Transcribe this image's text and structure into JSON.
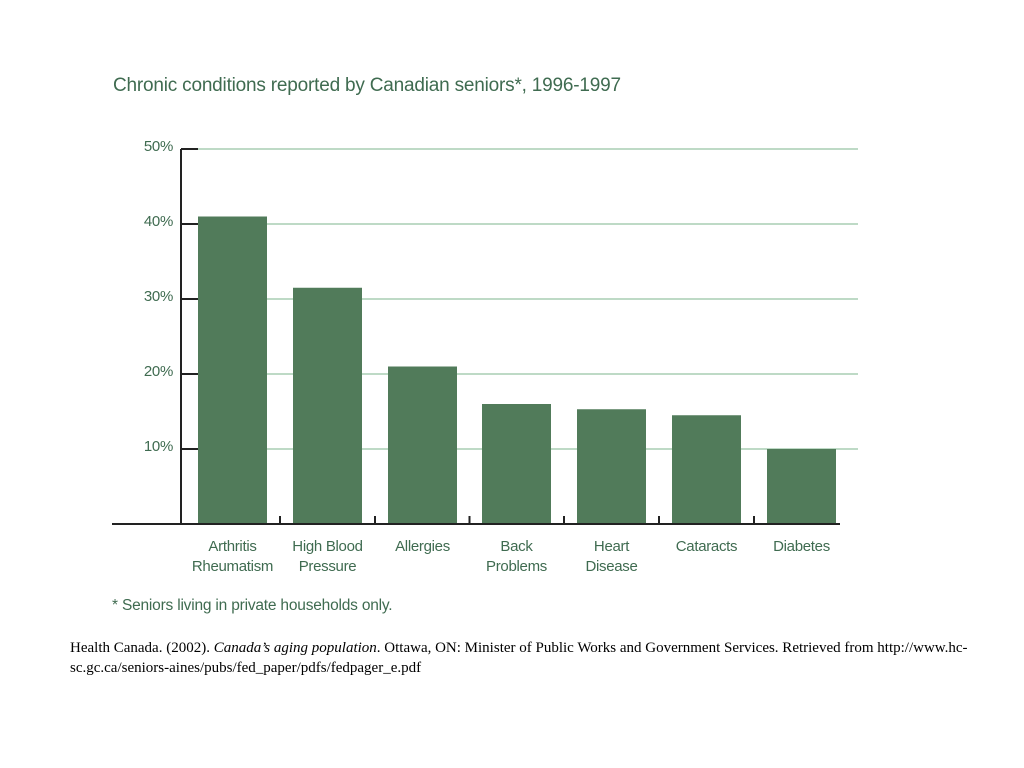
{
  "chart_data": {
    "type": "bar",
    "title": "Chronic conditions reported by Canadian seniors*, 1996-1997",
    "categories": [
      "Arthritis\nRheumatism",
      "High Blood\nPressure",
      "Allergies",
      "Back\nProblems",
      "Heart\nDisease",
      "Cataracts",
      "Diabetes"
    ],
    "values": [
      41,
      31.5,
      21,
      16,
      15.3,
      14.5,
      10
    ],
    "ylim": [
      0,
      50
    ],
    "yticks": [
      10,
      20,
      30,
      40,
      50
    ],
    "ytick_labels": [
      "10%",
      "20%",
      "30%",
      "40%",
      "50%"
    ],
    "grid": true,
    "bar_color": "#517b5a",
    "grid_color": "#a9cdb3",
    "axis_color": "#222222",
    "footnote": "* Seniors living in private households only."
  },
  "citation": {
    "prefix": "Health Canada. (2002). ",
    "title": "Canada’s aging population",
    "suffix": ". Ottawa, ON: Minister of Public Works and Government Services.  Retrieved from http://www.hc-sc.gc.ca/seniors-aines/pubs/fed_paper/pdfs/fedpager_e.pdf"
  }
}
